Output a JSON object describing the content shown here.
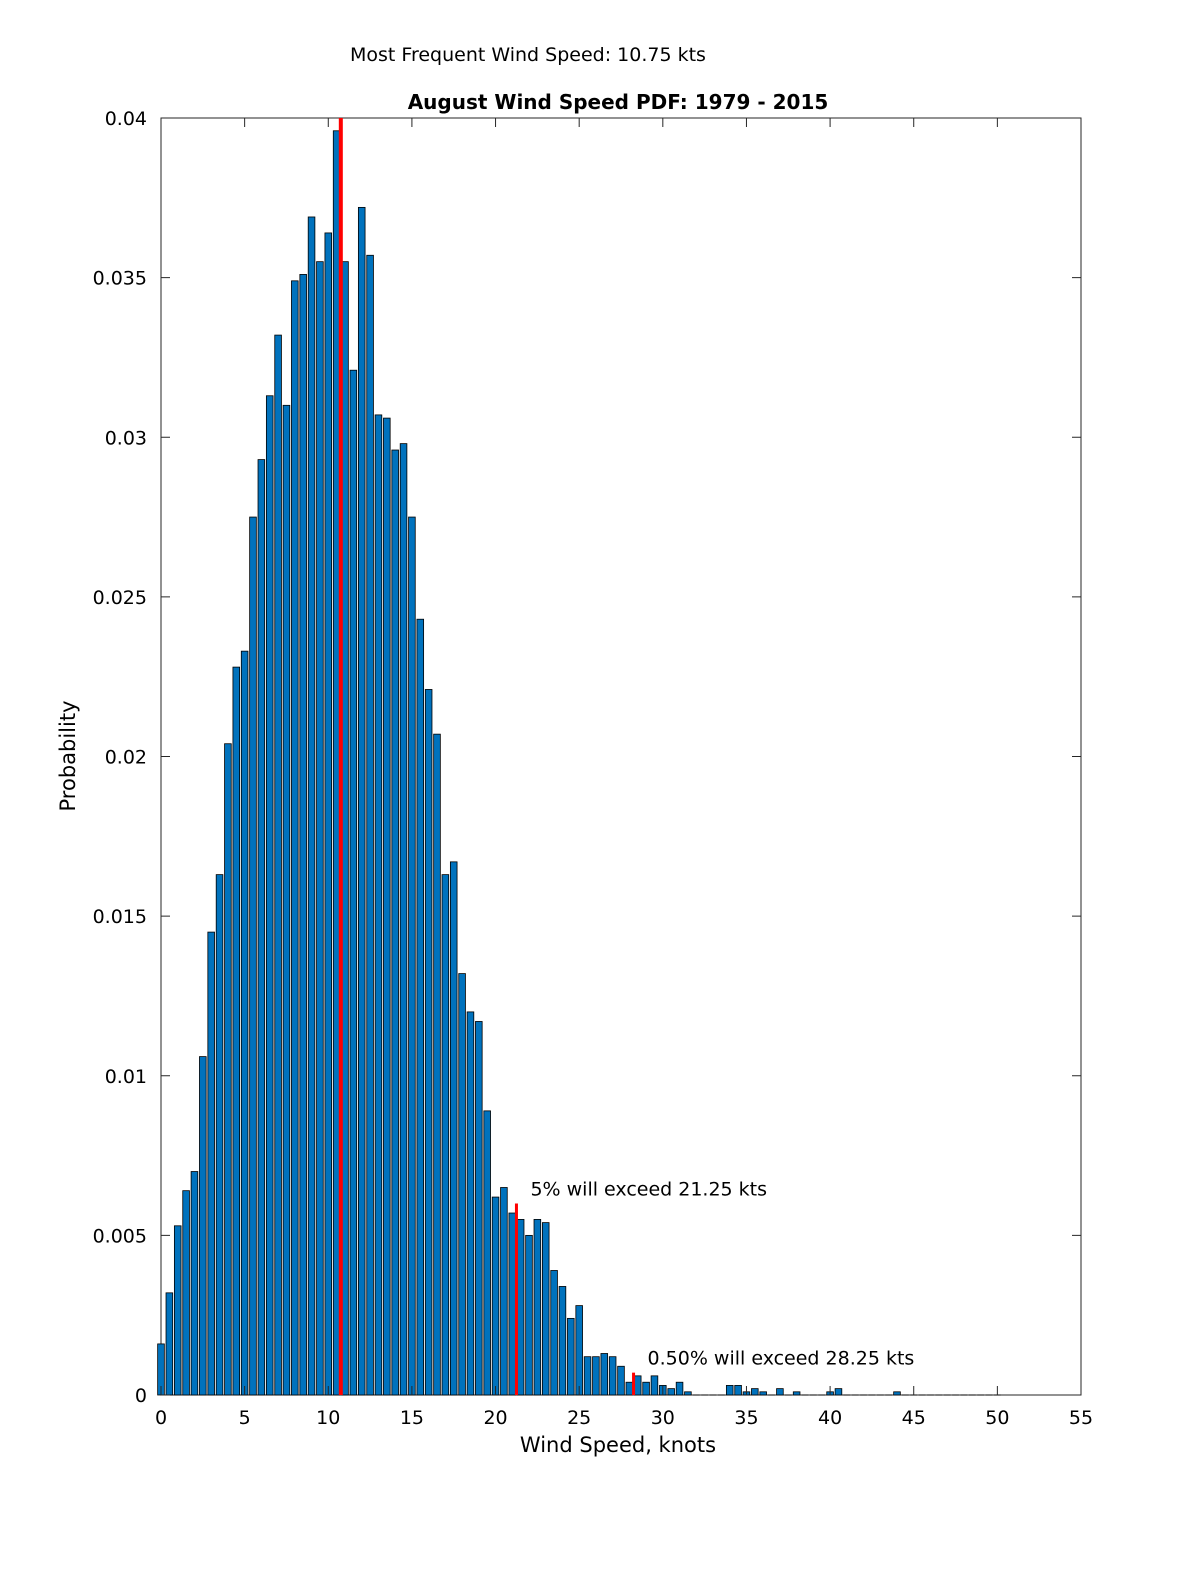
{
  "header_note": "Most Frequent Wind Speed: 10.75 kts",
  "colors": {
    "bar_fill": "#0072bd",
    "bar_edge": "#000000",
    "marker_line": "#ff0000",
    "axis": "#262626"
  },
  "chart_data": {
    "type": "bar",
    "title": "August Wind Speed PDF: 1979 - 2015",
    "xlabel": "Wind Speed, knots",
    "ylabel": "Probability",
    "xlim": [
      0,
      55
    ],
    "ylim": [
      0,
      0.04
    ],
    "xticks": [
      "0",
      "5",
      "10",
      "15",
      "20",
      "25",
      "30",
      "35",
      "40",
      "45",
      "50",
      "55"
    ],
    "yticks": [
      "0",
      "0.005",
      "0.01",
      "0.015",
      "0.02",
      "0.025",
      "0.03",
      "0.035",
      "0.04"
    ],
    "grid": false,
    "bin_width": 0.5,
    "x": [
      0,
      0.5,
      1,
      1.5,
      2,
      2.5,
      3,
      3.5,
      4,
      4.5,
      5,
      5.5,
      6,
      6.5,
      7,
      7.5,
      8,
      8.5,
      9,
      9.5,
      10,
      10.5,
      11,
      11.5,
      12,
      12.5,
      13,
      13.5,
      14,
      14.5,
      15,
      15.5,
      16,
      16.5,
      17,
      17.5,
      18,
      18.5,
      19,
      19.5,
      20,
      20.5,
      21,
      21.5,
      22,
      22.5,
      23,
      23.5,
      24,
      24.5,
      25,
      25.5,
      26,
      26.5,
      27,
      27.5,
      28,
      28.5,
      29,
      29.5,
      30,
      30.5,
      31,
      31.5,
      32,
      32.5,
      33,
      33.5,
      34,
      34.5,
      35,
      35.5,
      36,
      36.5,
      37,
      37.5,
      38,
      38.5,
      39,
      39.5,
      40,
      40.5,
      41,
      41.5,
      42,
      42.5,
      43,
      43.5,
      44,
      44.5,
      45,
      45.5,
      46,
      46.5,
      47,
      47.5,
      48,
      48.5,
      49,
      49.5,
      50
    ],
    "values": [
      0.0016,
      0.0032,
      0.0053,
      0.0064,
      0.007,
      0.0106,
      0.0145,
      0.0163,
      0.0204,
      0.0228,
      0.0233,
      0.0275,
      0.0293,
      0.0313,
      0.0332,
      0.031,
      0.0349,
      0.0351,
      0.0369,
      0.0355,
      0.0364,
      0.0396,
      0.0355,
      0.0321,
      0.0372,
      0.0357,
      0.0307,
      0.0306,
      0.0296,
      0.0298,
      0.0275,
      0.0243,
      0.0221,
      0.0207,
      0.0163,
      0.0167,
      0.0132,
      0.012,
      0.0117,
      0.0089,
      0.0062,
      0.0065,
      0.0057,
      0.0055,
      0.005,
      0.0055,
      0.0054,
      0.0039,
      0.0034,
      0.0024,
      0.0028,
      0.0012,
      0.0012,
      0.0013,
      0.0012,
      0.0009,
      0.0004,
      0.0006,
      0.0004,
      0.0006,
      0.0003,
      0.0002,
      0.0004,
      0.0001,
      0,
      0,
      0,
      0,
      0.0003,
      0.0003,
      0.0001,
      0.0002,
      0.0001,
      0,
      0.0002,
      0,
      0.0001,
      0,
      0,
      0,
      0.0001,
      0.0002,
      0,
      0,
      0,
      0,
      0,
      0,
      0.0001,
      0,
      0,
      0,
      0,
      0,
      0,
      0,
      0,
      0,
      0,
      0,
      0
    ],
    "reference_lines": [
      {
        "x": 10.75,
        "label": ""
      },
      {
        "x": 21.25,
        "label": "5% will exceed 21.25 kts"
      },
      {
        "x": 28.25,
        "label": "0.50% will exceed 28.25 kts"
      }
    ]
  }
}
